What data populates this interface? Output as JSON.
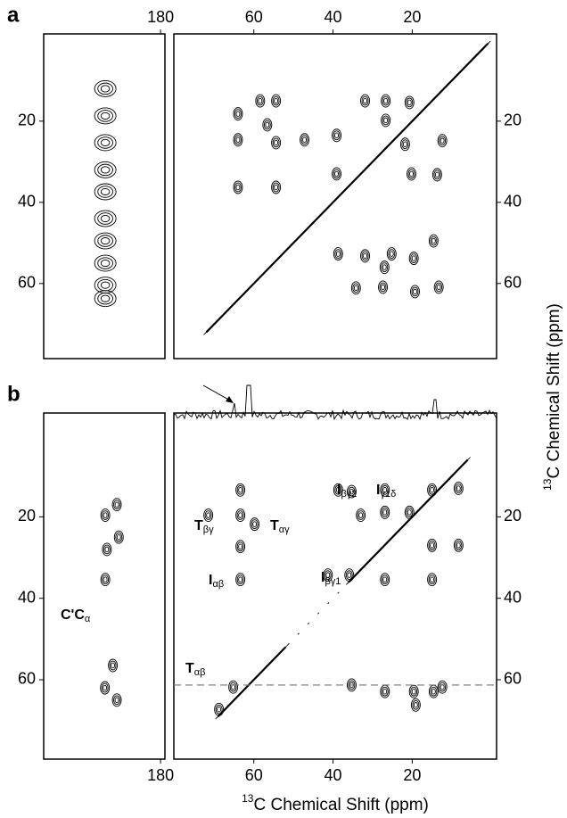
{
  "chart_data": [
    {
      "type": "contour",
      "panel_label": "a",
      "x_axis_position": "top",
      "y_axis_position": "left",
      "xlim": [
        209.4,
        178.9
      ],
      "xticks": [
        180
      ],
      "ylim": [
        -1.5,
        78.5
      ],
      "yticks": [
        20,
        40,
        60
      ],
      "peaks": {
        "x": [
          193.9,
          193.9,
          193.9,
          193.9,
          193.9,
          193.9,
          193.9,
          193.9,
          193.9,
          193.9
        ],
        "y": [
          12,
          18.7,
          25.3,
          32,
          37.4,
          44,
          49.5,
          55,
          60.4,
          63.7
        ]
      }
    },
    {
      "type": "contour",
      "x_axis_position": "top",
      "y_axis_position": "right",
      "xlim": [
        80.2,
        -1.3
      ],
      "xticks": [
        60,
        40,
        20
      ],
      "ylim": [
        -1.5,
        78.5
      ],
      "yticks": [
        20,
        40,
        60
      ],
      "y_label": {
        "sup": "13",
        "text": "C Chemical Shift (ppm)"
      },
      "peaks": {
        "x": [
          64,
          64,
          64,
          58.4,
          54.4,
          54.4,
          54.4,
          47.2,
          39.1,
          31.9,
          26.7,
          26.7,
          20.7,
          21.8,
          20.2,
          13.7,
          12.4,
          38.7,
          31.9,
          25.2,
          19.6,
          14.6,
          34.2,
          27.4,
          19.3,
          13.3,
          27,
          39.1,
          56.6
        ],
        "y": [
          18.2,
          24.6,
          36.3,
          15,
          15,
          25.3,
          36.3,
          24.6,
          23.5,
          15,
          15,
          19.8,
          15.4,
          25.7,
          33,
          33.2,
          24.8,
          52.7,
          53.2,
          52.7,
          53.8,
          49.5,
          61.1,
          60.9,
          62,
          60.9,
          56,
          33,
          20.9
        ]
      }
    },
    {
      "type": "contour",
      "panel_label": "b",
      "x_axis_position": "bottom",
      "y_axis_position": "left",
      "xlim": [
        209.4,
        178.9
      ],
      "xticks": [
        180
      ],
      "ylim": [
        -5.5,
        79.5
      ],
      "yticks": [
        20,
        40,
        60
      ],
      "annotations": [
        {
          "main": "C'C",
          "sub": "α"
        }
      ],
      "peaks": {
        "x": [
          193.9,
          191,
          190.5,
          193.5,
          193.9,
          192,
          194,
          191
        ],
        "y": [
          19.6,
          17,
          25,
          28,
          35.4,
          56.5,
          62,
          65
        ]
      }
    },
    {
      "type": "contour",
      "x_axis_position": "bottom",
      "y_axis_position": "right",
      "xlim": [
        80.2,
        -1.3
      ],
      "xticks": [
        60,
        40,
        20
      ],
      "ylim": [
        -5.5,
        79.5
      ],
      "yticks": [
        20,
        40,
        60
      ],
      "x_label": {
        "sup": "13",
        "text": "C Chemical Shift (ppm)"
      },
      "reference_line": 61.3,
      "annotations": [
        {
          "main": "T",
          "sub": "βγ"
        },
        {
          "main": "T",
          "sub": "αγ"
        },
        {
          "main": "I",
          "sub": "αβ"
        },
        {
          "main": "I",
          "sub": "βγ2"
        },
        {
          "main": "I",
          "sub": "γ1δ"
        },
        {
          "main": "I",
          "sub": "βγ1"
        },
        {
          "main": "T",
          "sub": "αβ"
        }
      ],
      "peaks": {
        "x": [
          63.4,
          63.4,
          63.4,
          63.4,
          71.5,
          59.8,
          38.7,
          35.3,
          33,
          26.9,
          26.9,
          20.7,
          41.3,
          35.9,
          26.9,
          15,
          15,
          15,
          8.3,
          8.3,
          35.3,
          26.9,
          19.6,
          14.6,
          12.4,
          65.2,
          68.8,
          19.1
        ],
        "y": [
          13.4,
          19.6,
          27.3,
          35.4,
          19.6,
          21.8,
          13.4,
          13.8,
          19.6,
          13.4,
          18.9,
          18.9,
          34.3,
          34.3,
          35.4,
          13.4,
          27,
          35.4,
          13,
          27,
          61.3,
          62.9,
          62.9,
          62.9,
          61.8,
          61.8,
          67.3,
          66.2
        ]
      }
    }
  ]
}
